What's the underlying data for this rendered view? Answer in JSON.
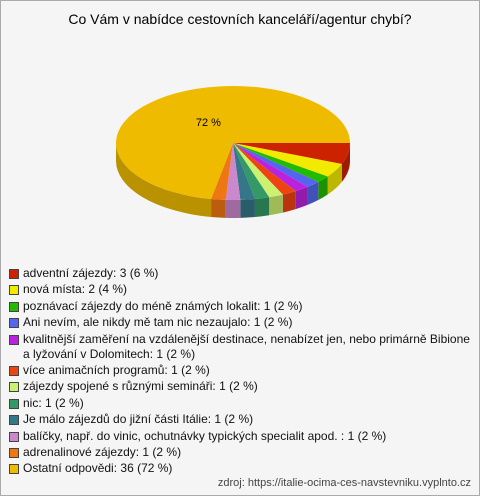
{
  "chart_data": {
    "type": "pie",
    "title": "Co Vám v nabídce cestovních kanceláří/agentur chybí?",
    "categories": [
      "adventní zájezdy: 3 (6 %)",
      "nová místa: 2 (4 %)",
      "poznávací zájezdy do méně známých lokalit: 1 (2 %)",
      "Ani nevím, ale nikdy mě tam nic nezaujalo: 1 (2 %)",
      "kvalitnější zaměření na vzdálenější destinace, nenabízet jen, nebo primárně Bibione a lyžování v Dolomitech: 1 (2 %)",
      "více animačních programů: 1 (2 %)",
      "zájezdy spojené s různými semináři: 1 (2 %)",
      "nic: 1 (2 %)",
      "Je málo zájezdů do jižní části Itálie: 1 (2 %)",
      "balíčky, např. do vinic, ochutnávky typických specialit apod. : 1 (2 %)",
      "adrenalinové zájezdy: 1 (2 %)",
      "Ostatní odpovědi: 36 (72 %)"
    ],
    "values": [
      6,
      4,
      2,
      2,
      2,
      2,
      2,
      2,
      2,
      2,
      2,
      72
    ],
    "value_labels": [
      null,
      null,
      null,
      null,
      null,
      null,
      null,
      null,
      null,
      null,
      null,
      "72 %"
    ],
    "colors": [
      "#cc2200",
      "#f2ea00",
      "#22bb00",
      "#5566ee",
      "#bb22dd",
      "#ee4411",
      "#ccf070",
      "#339966",
      "#337788",
      "#cc88cc",
      "#ee7711",
      "#eebb00"
    ],
    "source": "zdroj: https://italie-ocima-ces-navstevniku.vyplnto.cz"
  }
}
